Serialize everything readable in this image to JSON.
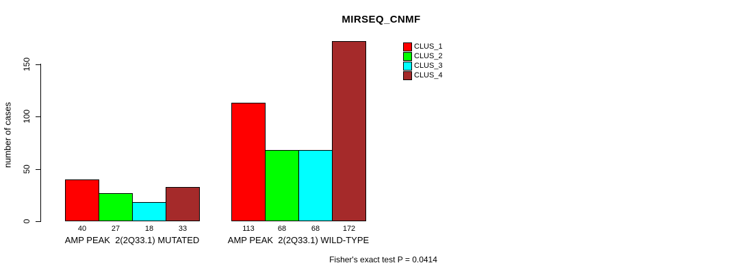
{
  "chart_data": {
    "type": "bar",
    "title": "MIRSEQ_CNMF",
    "ylabel": "number of cases",
    "xlabel": "",
    "categories": [
      "AMP PEAK  2(2Q33.1) MUTATED",
      "AMP PEAK  2(2Q33.1) WILD-TYPE"
    ],
    "series": [
      {
        "name": "CLUS_1",
        "color": "#FF0000",
        "values": [
          40,
          113
        ]
      },
      {
        "name": "CLUS_2",
        "color": "#00FF00",
        "values": [
          27,
          68
        ]
      },
      {
        "name": "CLUS_3",
        "color": "#00FFFF",
        "values": [
          18,
          68
        ]
      },
      {
        "name": "CLUS_4",
        "color": "#A52A2A",
        "values": [
          33,
          172
        ]
      }
    ],
    "yticks": [
      0,
      50,
      100,
      150
    ],
    "ylim": [
      0,
      172
    ],
    "bar_value_labels_shown": true,
    "grid": false,
    "legend_position": "top-right",
    "annotation": "Fisher's exact test P = 0.0414"
  }
}
